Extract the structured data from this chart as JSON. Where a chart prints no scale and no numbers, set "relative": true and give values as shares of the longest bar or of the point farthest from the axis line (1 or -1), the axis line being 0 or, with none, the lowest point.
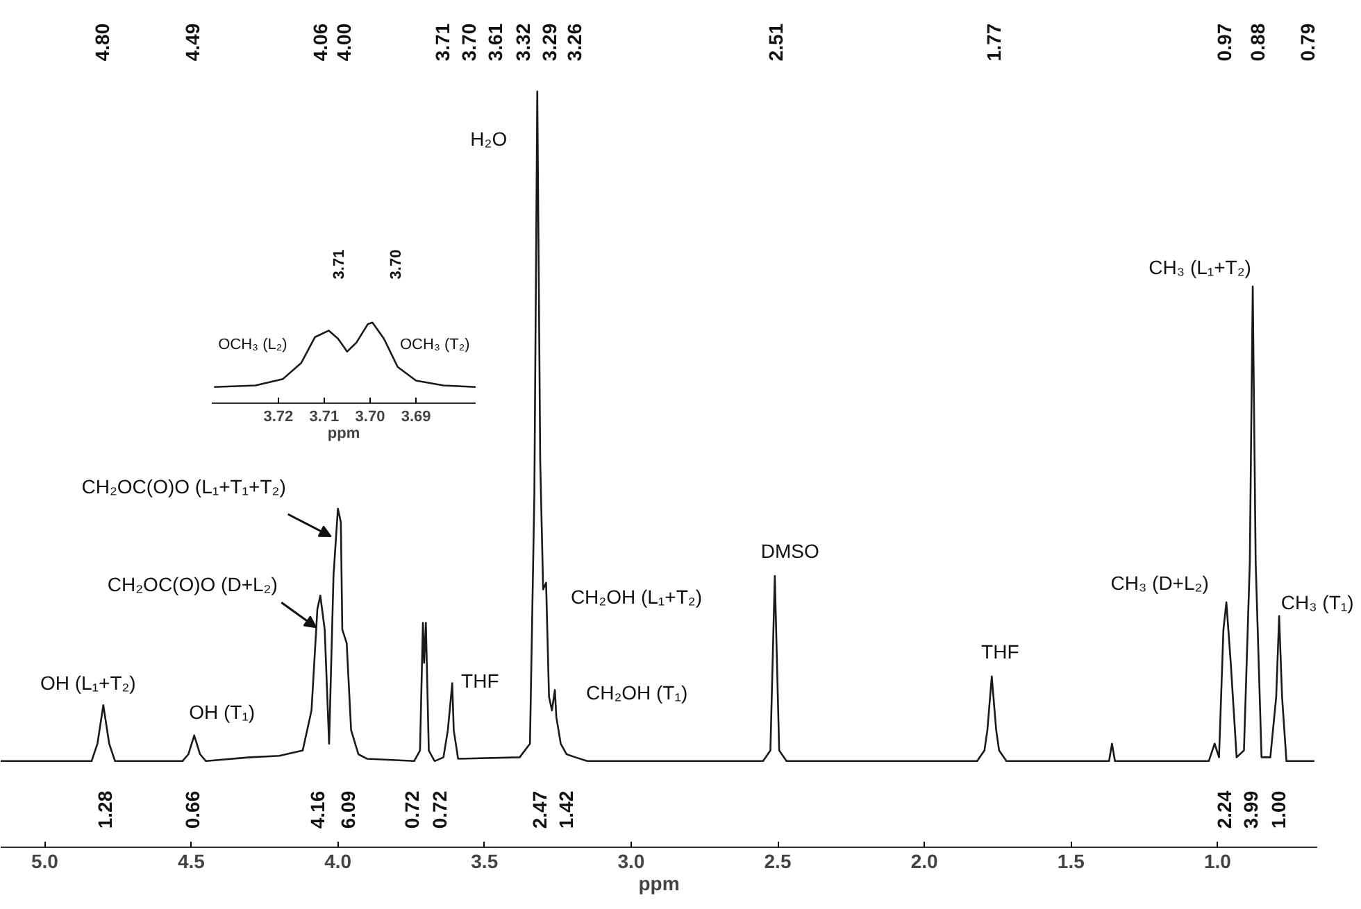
{
  "chart_data": [
    {
      "type": "line",
      "xlabel": "ppm",
      "relative": true,
      "xlim": [
        5.15,
        0.66
      ],
      "xticks": [
        {
          "value": 5,
          "label": "5.0"
        },
        {
          "value": 4.5,
          "label": "4.5"
        },
        {
          "value": 4,
          "label": "4.0"
        },
        {
          "value": 3.5,
          "label": "3.5"
        },
        {
          "value": 3,
          "label": "3.0"
        },
        {
          "value": 2.5,
          "label": "2.5"
        },
        {
          "value": 2,
          "label": "2.0"
        },
        {
          "value": 1.5,
          "label": "1.5"
        },
        {
          "value": 1,
          "label": "1.0"
        }
      ],
      "grid": false,
      "line_style": "solid",
      "series": [
        {
          "color": "#1a1a1a",
          "x": [
            5.15,
            4.84,
            4.82,
            4.8,
            4.78,
            4.76,
            4.53,
            4.51,
            4.49,
            4.47,
            4.45,
            4.3,
            4.2,
            4.12,
            4.09,
            4.07,
            4.06,
            4.045,
            4.03,
            4.015,
            4.0,
            3.99,
            3.985,
            3.97,
            3.955,
            3.93,
            3.9,
            3.74,
            3.72,
            3.71,
            3.706,
            3.7,
            3.69,
            3.67,
            3.64,
            3.625,
            3.61,
            3.605,
            3.59,
            3.38,
            3.345,
            3.33,
            3.32,
            3.31,
            3.3,
            3.29,
            3.28,
            3.27,
            3.26,
            3.255,
            3.24,
            3.22,
            3.19,
            3.15,
            2.55,
            2.525,
            2.51,
            2.495,
            2.47,
            1.82,
            1.795,
            1.785,
            1.77,
            1.755,
            1.745,
            1.72,
            1.37,
            1.36,
            1.35,
            1.03,
            1.01,
            0.995,
            0.98,
            0.97,
            0.955,
            0.935,
            0.91,
            0.89,
            0.88,
            0.87,
            0.85,
            0.82,
            0.8,
            0.79,
            0.78,
            0.765,
            0.67
          ],
          "values": [
            0.114,
            0.114,
            0.137,
            0.188,
            0.137,
            0.114,
            0.114,
            0.123,
            0.148,
            0.123,
            0.114,
            0.119,
            0.121,
            0.128,
            0.181,
            0.315,
            0.333,
            0.288,
            0.137,
            0.359,
            0.448,
            0.43,
            0.288,
            0.27,
            0.155,
            0.123,
            0.117,
            0.114,
            0.128,
            0.297,
            0.244,
            0.297,
            0.128,
            0.114,
            0.119,
            0.155,
            0.217,
            0.155,
            0.117,
            0.119,
            0.137,
            0.466,
            1.0,
            0.511,
            0.341,
            0.35,
            0.199,
            0.181,
            0.208,
            0.172,
            0.137,
            0.123,
            0.119,
            0.114,
            0.114,
            0.128,
            0.359,
            0.128,
            0.114,
            0.114,
            0.128,
            0.155,
            0.226,
            0.155,
            0.128,
            0.114,
            0.114,
            0.137,
            0.114,
            0.114,
            0.137,
            0.119,
            0.288,
            0.324,
            0.244,
            0.119,
            0.128,
            0.377,
            0.742,
            0.377,
            0.119,
            0.119,
            0.199,
            0.306,
            0.199,
            0.114,
            0.114
          ]
        }
      ],
      "annotations": [
        "4.80",
        "4.49",
        "4.06",
        "4.00",
        "3.71",
        "3.70",
        "3.61",
        "3.32",
        "3.29",
        "3.26",
        "2.51",
        "1.77",
        "0.97",
        "0.88",
        "0.79",
        "1.28",
        "0.66",
        "4.16",
        "6.09",
        "0.72",
        "0.72",
        "2.47",
        "1.42",
        "2.24",
        "3.99",
        "1.00",
        {
          "text": "H₂O",
          "x": 3.32,
          "y": 1.0
        },
        {
          "text": "CH₂OC(O)O (L₁+T₁+T₂)",
          "x": 4.0,
          "y": 0.448
        },
        {
          "text": "CH₂OC(O)O (D+L₂)",
          "x": 4.06,
          "y": 0.333
        },
        {
          "text": "OH (L₁+T₂)",
          "x": 4.8,
          "y": 0.188
        },
        {
          "text": "OH (T₁)",
          "x": 4.49,
          "y": 0.148
        },
        {
          "text": "THF",
          "x": 3.61,
          "y": 0.217
        },
        {
          "text": "CH₂OH (L₁+T₂)",
          "x": 3.29,
          "y": 0.35
        },
        {
          "text": "CH₂OH (T₁)",
          "x": 3.26,
          "y": 0.208
        },
        {
          "text": "DMSO",
          "x": 2.51,
          "y": 0.359
        },
        {
          "text": "THF",
          "x": 1.77,
          "y": 0.226
        },
        {
          "text": "CH₃ (D+L₂)",
          "x": 0.97,
          "y": 0.324
        },
        {
          "text": "CH₃ (L₁+T₂)",
          "x": 0.88,
          "y": 0.742
        },
        {
          "text": "CH₃ (T₁)",
          "x": 0.79,
          "y": 0.306
        }
      ]
    },
    {
      "type": "line",
      "xlabel": "ppm",
      "relative": true,
      "xlim": [
        3.7345,
        3.677
      ],
      "xticks": [
        {
          "value": 3.72,
          "label": "3.72"
        },
        {
          "value": 3.71,
          "label": "3.71"
        },
        {
          "value": 3.7,
          "label": "3.70"
        },
        {
          "value": 3.69,
          "label": "3.69"
        }
      ],
      "grid": false,
      "line_style": "solid",
      "series": [
        {
          "color": "#1a1a1a",
          "x": [
            3.734,
            3.725,
            3.719,
            3.715,
            3.712,
            3.709,
            3.707,
            3.705,
            3.703,
            3.7005,
            3.6995,
            3.697,
            3.694,
            3.69,
            3.684,
            3.677
          ],
          "values": [
            0.2,
            0.22,
            0.3,
            0.5,
            0.82,
            0.9,
            0.8,
            0.64,
            0.75,
            0.98,
            1.0,
            0.8,
            0.45,
            0.28,
            0.22,
            0.2
          ]
        }
      ],
      "annotations": [
        "3.71",
        "3.70",
        {
          "text": "OCH₃ (L₂)",
          "x": 3.715,
          "y": 0.5
        },
        {
          "text": "OCH₃ (T₂)",
          "x": 3.6995,
          "y": 1.0
        }
      ]
    }
  ]
}
